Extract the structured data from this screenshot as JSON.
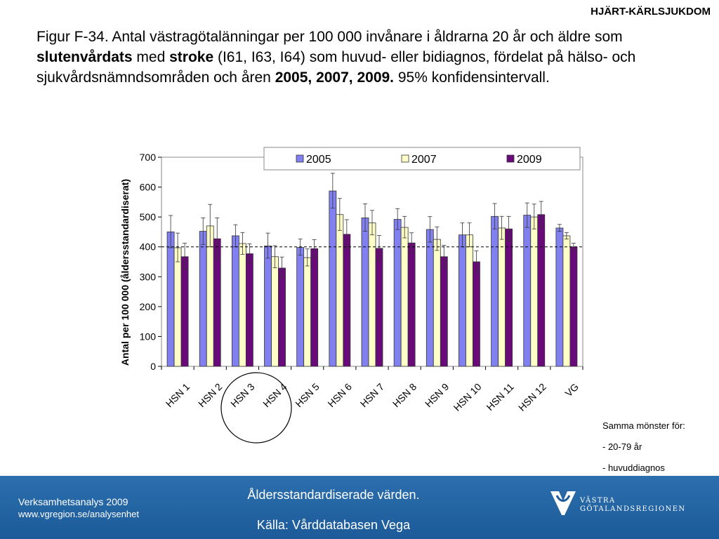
{
  "header": {
    "section_label": "HJÄRT-KÄRLSJUKDOM"
  },
  "title": {
    "part1": "Figur F-34. Antal västragötalänningar per 100 000 invånare i åldrarna 20 år och äldre som ",
    "bold1": "slutenvårdats",
    "part2": " med ",
    "bold2": "stroke",
    "part3": " (I61, I63, I64) som huvud- eller bidiagnos, fördelat på hälso- och sjukvårdsnämndsområden och åren ",
    "bold3": "2005, 2007, 2009.",
    "part4": " 95% konfidensintervall."
  },
  "chart_data": {
    "type": "bar",
    "ylabel": "Antal per 100 000 (åldersstandardiserat)",
    "ylim": [
      0,
      700
    ],
    "yticks": [
      0,
      100,
      200,
      300,
      400,
      500,
      600,
      700
    ],
    "reference_line": 400,
    "legend_position": "top-right",
    "grid": false,
    "highlighted_category": "HSN 4",
    "categories": [
      "HSN 1",
      "HSN 2",
      "HSN 3",
      "HSN 4",
      "HSN 5",
      "HSN 6",
      "HSN 7",
      "HSN 8",
      "HSN 9",
      "HSN 10",
      "HSN 11",
      "HSN 12",
      "VG"
    ],
    "series": [
      {
        "name": "2005",
        "color": "#8080f0",
        "values": [
          450,
          452,
          437,
          403,
          398,
          587,
          497,
          492,
          458,
          440,
          502,
          506,
          463
        ],
        "ci_low": [
          397,
          408,
          400,
          362,
          372,
          530,
          452,
          458,
          416,
          400,
          460,
          465,
          452
        ],
        "ci_high": [
          505,
          497,
          474,
          446,
          426,
          646,
          544,
          528,
          501,
          480,
          545,
          547,
          475
        ]
      },
      {
        "name": "2007",
        "color": "#ffffc8",
        "values": [
          397,
          470,
          411,
          367,
          364,
          508,
          480,
          465,
          425,
          440,
          463,
          500,
          437
        ],
        "ci_low": [
          350,
          400,
          375,
          330,
          336,
          455,
          440,
          430,
          388,
          400,
          425,
          460,
          426
        ],
        "ci_high": [
          446,
          542,
          448,
          404,
          393,
          562,
          522,
          502,
          467,
          480,
          502,
          543,
          448
        ]
      },
      {
        "name": "2009",
        "color": "#6a0a7a",
        "values": [
          367,
          427,
          377,
          329,
          394,
          442,
          395,
          413,
          367,
          350,
          460,
          508,
          400
        ],
        "ci_low": [
          325,
          360,
          345,
          295,
          365,
          395,
          355,
          380,
          330,
          315,
          420,
          465,
          388
        ],
        "ci_high": [
          412,
          497,
          410,
          366,
          424,
          491,
          438,
          447,
          405,
          387,
          502,
          552,
          412
        ]
      }
    ]
  },
  "note": {
    "line1": "Samma mönster för:",
    "line2": "- 20-79 år",
    "line3": "- huvuddiagnos"
  },
  "footer": {
    "left_line1": "Verksamhetsanalys 2009",
    "left_line2": "www.vgregion.se/analysenhet",
    "center_line1": "Åldersstandardiserade värden.",
    "center_line2": "Källa: Vårddatabasen Vega",
    "logo_line1": "VÄSTRA",
    "logo_line2": "GÖTALANDSREGIONEN"
  }
}
